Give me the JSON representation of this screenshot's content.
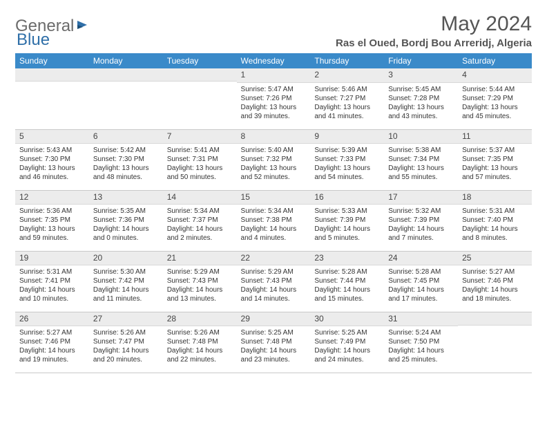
{
  "logo": {
    "text1": "General",
    "text2": "Blue"
  },
  "title": "May 2024",
  "location": "Ras el Oued, Bordj Bou Arreridj, Algeria",
  "colors": {
    "header_bg": "#3a8ac9",
    "header_text": "#ffffff",
    "daynum_bg": "#ececec",
    "border": "#c9c9c9",
    "logo_gray": "#6b6b6b",
    "logo_blue": "#2f6fa8"
  },
  "weekdays": [
    "Sunday",
    "Monday",
    "Tuesday",
    "Wednesday",
    "Thursday",
    "Friday",
    "Saturday"
  ],
  "weeks": [
    [
      null,
      null,
      null,
      {
        "n": "1",
        "sr": "Sunrise: 5:47 AM",
        "ss": "Sunset: 7:26 PM",
        "dl": "Daylight: 13 hours and 39 minutes."
      },
      {
        "n": "2",
        "sr": "Sunrise: 5:46 AM",
        "ss": "Sunset: 7:27 PM",
        "dl": "Daylight: 13 hours and 41 minutes."
      },
      {
        "n": "3",
        "sr": "Sunrise: 5:45 AM",
        "ss": "Sunset: 7:28 PM",
        "dl": "Daylight: 13 hours and 43 minutes."
      },
      {
        "n": "4",
        "sr": "Sunrise: 5:44 AM",
        "ss": "Sunset: 7:29 PM",
        "dl": "Daylight: 13 hours and 45 minutes."
      }
    ],
    [
      {
        "n": "5",
        "sr": "Sunrise: 5:43 AM",
        "ss": "Sunset: 7:30 PM",
        "dl": "Daylight: 13 hours and 46 minutes."
      },
      {
        "n": "6",
        "sr": "Sunrise: 5:42 AM",
        "ss": "Sunset: 7:30 PM",
        "dl": "Daylight: 13 hours and 48 minutes."
      },
      {
        "n": "7",
        "sr": "Sunrise: 5:41 AM",
        "ss": "Sunset: 7:31 PM",
        "dl": "Daylight: 13 hours and 50 minutes."
      },
      {
        "n": "8",
        "sr": "Sunrise: 5:40 AM",
        "ss": "Sunset: 7:32 PM",
        "dl": "Daylight: 13 hours and 52 minutes."
      },
      {
        "n": "9",
        "sr": "Sunrise: 5:39 AM",
        "ss": "Sunset: 7:33 PM",
        "dl": "Daylight: 13 hours and 54 minutes."
      },
      {
        "n": "10",
        "sr": "Sunrise: 5:38 AM",
        "ss": "Sunset: 7:34 PM",
        "dl": "Daylight: 13 hours and 55 minutes."
      },
      {
        "n": "11",
        "sr": "Sunrise: 5:37 AM",
        "ss": "Sunset: 7:35 PM",
        "dl": "Daylight: 13 hours and 57 minutes."
      }
    ],
    [
      {
        "n": "12",
        "sr": "Sunrise: 5:36 AM",
        "ss": "Sunset: 7:35 PM",
        "dl": "Daylight: 13 hours and 59 minutes."
      },
      {
        "n": "13",
        "sr": "Sunrise: 5:35 AM",
        "ss": "Sunset: 7:36 PM",
        "dl": "Daylight: 14 hours and 0 minutes."
      },
      {
        "n": "14",
        "sr": "Sunrise: 5:34 AM",
        "ss": "Sunset: 7:37 PM",
        "dl": "Daylight: 14 hours and 2 minutes."
      },
      {
        "n": "15",
        "sr": "Sunrise: 5:34 AM",
        "ss": "Sunset: 7:38 PM",
        "dl": "Daylight: 14 hours and 4 minutes."
      },
      {
        "n": "16",
        "sr": "Sunrise: 5:33 AM",
        "ss": "Sunset: 7:39 PM",
        "dl": "Daylight: 14 hours and 5 minutes."
      },
      {
        "n": "17",
        "sr": "Sunrise: 5:32 AM",
        "ss": "Sunset: 7:39 PM",
        "dl": "Daylight: 14 hours and 7 minutes."
      },
      {
        "n": "18",
        "sr": "Sunrise: 5:31 AM",
        "ss": "Sunset: 7:40 PM",
        "dl": "Daylight: 14 hours and 8 minutes."
      }
    ],
    [
      {
        "n": "19",
        "sr": "Sunrise: 5:31 AM",
        "ss": "Sunset: 7:41 PM",
        "dl": "Daylight: 14 hours and 10 minutes."
      },
      {
        "n": "20",
        "sr": "Sunrise: 5:30 AM",
        "ss": "Sunset: 7:42 PM",
        "dl": "Daylight: 14 hours and 11 minutes."
      },
      {
        "n": "21",
        "sr": "Sunrise: 5:29 AM",
        "ss": "Sunset: 7:43 PM",
        "dl": "Daylight: 14 hours and 13 minutes."
      },
      {
        "n": "22",
        "sr": "Sunrise: 5:29 AM",
        "ss": "Sunset: 7:43 PM",
        "dl": "Daylight: 14 hours and 14 minutes."
      },
      {
        "n": "23",
        "sr": "Sunrise: 5:28 AM",
        "ss": "Sunset: 7:44 PM",
        "dl": "Daylight: 14 hours and 15 minutes."
      },
      {
        "n": "24",
        "sr": "Sunrise: 5:28 AM",
        "ss": "Sunset: 7:45 PM",
        "dl": "Daylight: 14 hours and 17 minutes."
      },
      {
        "n": "25",
        "sr": "Sunrise: 5:27 AM",
        "ss": "Sunset: 7:46 PM",
        "dl": "Daylight: 14 hours and 18 minutes."
      }
    ],
    [
      {
        "n": "26",
        "sr": "Sunrise: 5:27 AM",
        "ss": "Sunset: 7:46 PM",
        "dl": "Daylight: 14 hours and 19 minutes."
      },
      {
        "n": "27",
        "sr": "Sunrise: 5:26 AM",
        "ss": "Sunset: 7:47 PM",
        "dl": "Daylight: 14 hours and 20 minutes."
      },
      {
        "n": "28",
        "sr": "Sunrise: 5:26 AM",
        "ss": "Sunset: 7:48 PM",
        "dl": "Daylight: 14 hours and 22 minutes."
      },
      {
        "n": "29",
        "sr": "Sunrise: 5:25 AM",
        "ss": "Sunset: 7:48 PM",
        "dl": "Daylight: 14 hours and 23 minutes."
      },
      {
        "n": "30",
        "sr": "Sunrise: 5:25 AM",
        "ss": "Sunset: 7:49 PM",
        "dl": "Daylight: 14 hours and 24 minutes."
      },
      {
        "n": "31",
        "sr": "Sunrise: 5:24 AM",
        "ss": "Sunset: 7:50 PM",
        "dl": "Daylight: 14 hours and 25 minutes."
      },
      null
    ]
  ]
}
